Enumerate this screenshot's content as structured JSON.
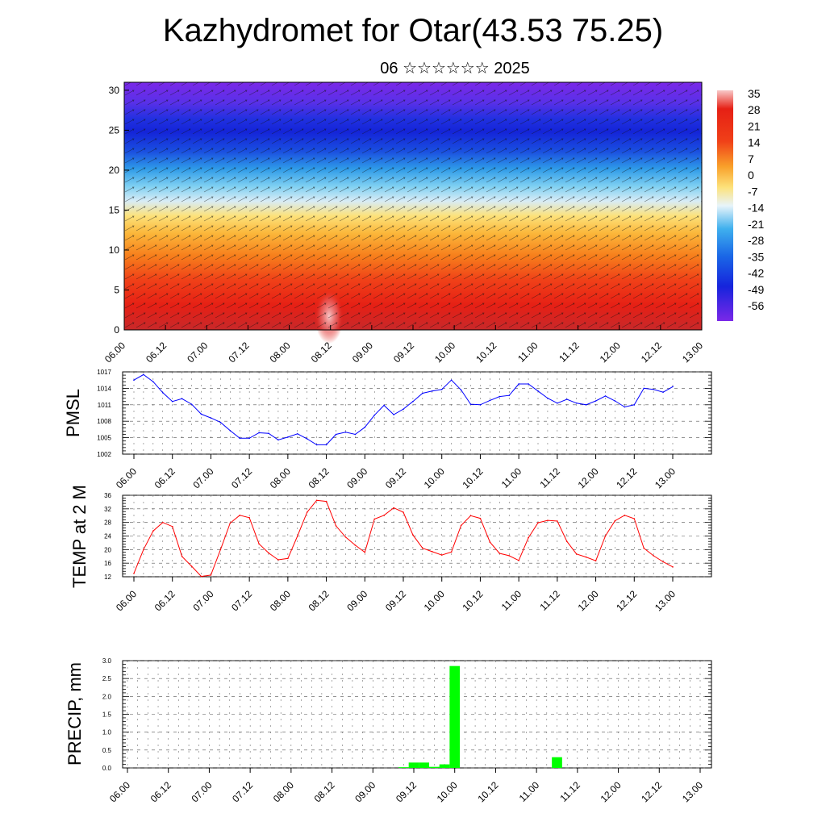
{
  "header": {
    "title": "Kazhydromet for Otar(43.53 75.25)",
    "subtitle": "06 ☆☆☆☆☆☆ 2025"
  },
  "time_labels": [
    "06.00",
    "06.12",
    "07.00",
    "07.12",
    "08.00",
    "08.12",
    "09.00",
    "09.12",
    "10.00",
    "10.12",
    "11.00",
    "11.12",
    "12.00",
    "12.12",
    "13.00"
  ],
  "colorbar": {
    "labels": [
      "35",
      "28",
      "21",
      "14",
      "7",
      "0",
      "-7",
      "-14",
      "-21",
      "-28",
      "-35",
      "-42",
      "-49",
      "-56"
    ]
  },
  "chart_data": [
    {
      "type": "heatmap",
      "title": "",
      "ylabel": "",
      "ylim": [
        0,
        31
      ],
      "yticks": [
        0,
        5,
        10,
        15,
        20,
        25,
        30
      ],
      "x": "time_labels",
      "colorscale_range": [
        -60,
        36
      ],
      "profile_levels": [
        0,
        2,
        4,
        6,
        8,
        10,
        12,
        14,
        16,
        18,
        20,
        22,
        24,
        26,
        28,
        30,
        31
      ],
      "profile_values": [
        30,
        26,
        22,
        18,
        14,
        9,
        5,
        0,
        -8,
        -22,
        -38,
        -50,
        -56,
        -52,
        -46,
        -44,
        -43
      ]
    },
    {
      "type": "line",
      "ylabel": "PMSL",
      "ylim": [
        1002,
        1017
      ],
      "yticks": [
        1002,
        1005,
        1008,
        1011,
        1014,
        1017
      ],
      "color": "#0000ff",
      "x_step_hours": 3,
      "values": [
        1015.5,
        1016.5,
        1015.2,
        1013.2,
        1011.6,
        1012.1,
        1011.1,
        1009.3,
        1008.6,
        1007.8,
        1006.3,
        1004.9,
        1004.9,
        1005.9,
        1005.8,
        1004.6,
        1005.1,
        1005.7,
        1004.8,
        1003.7,
        1003.7,
        1005.6,
        1006.0,
        1005.6,
        1006.9,
        1009.1,
        1010.9,
        1009.2,
        1010.2,
        1011.6,
        1013.1,
        1013.5,
        1013.8,
        1015.5,
        1013.7,
        1011.1,
        1011.0,
        1011.8,
        1012.5,
        1012.7,
        1014.8,
        1014.8,
        1013.5,
        1012.2,
        1011.3,
        1012.0,
        1011.3,
        1011.0,
        1011.7,
        1012.6,
        1011.7,
        1010.6,
        1011.0,
        1014.0,
        1013.8,
        1013.3,
        1014.3
      ]
    },
    {
      "type": "line",
      "ylabel": "TEMP at 2 M",
      "ylim": [
        12,
        36
      ],
      "yticks": [
        12,
        16,
        20,
        24,
        28,
        32,
        36
      ],
      "color": "#ff0000",
      "x_step_hours": 3,
      "values": [
        13.0,
        20.0,
        25.5,
        28.0,
        26.8,
        18.0,
        15.1,
        12.1,
        12.5,
        20.0,
        27.8,
        30.1,
        29.4,
        21.7,
        19.0,
        17.0,
        17.4,
        24.0,
        31.0,
        34.5,
        34.2,
        27.0,
        23.7,
        21.3,
        19.2,
        29.0,
        30.1,
        32.3,
        31.0,
        24.3,
        20.4,
        19.4,
        18.4,
        19.3,
        27.1,
        30.0,
        29.2,
        22.2,
        18.9,
        18.2,
        16.8,
        23.5,
        27.9,
        28.6,
        28.4,
        22.4,
        18.7,
        17.8,
        16.7,
        24.0,
        28.5,
        30.1,
        29.1,
        20.4,
        18.2,
        16.4,
        14.9
      ]
    },
    {
      "type": "bar",
      "ylabel": "PRECIP, mm",
      "ylim": [
        0,
        3
      ],
      "yticks": [
        0,
        0.5,
        1,
        1.5,
        2,
        2.5,
        3
      ],
      "color": "#00ff00",
      "x_step_hours": 3,
      "values": [
        0,
        0,
        0,
        0,
        0,
        0,
        0,
        0,
        0,
        0,
        0,
        0,
        0,
        0,
        0,
        0,
        0,
        0,
        0,
        0,
        0,
        0,
        0,
        0,
        0,
        0,
        0,
        0.02,
        0.15,
        0.15,
        0.03,
        0.1,
        2.85,
        0,
        0,
        0,
        0,
        0,
        0,
        0,
        0,
        0,
        0.3,
        0,
        0,
        0,
        0,
        0,
        0,
        0,
        0,
        0,
        0,
        0,
        0,
        0,
        0
      ]
    }
  ]
}
